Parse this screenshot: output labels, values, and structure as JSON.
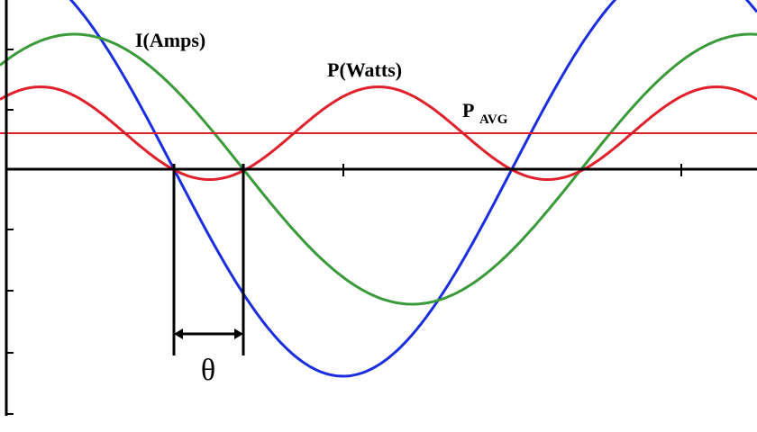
{
  "labels": {
    "current": "I(Amps)",
    "power": "P(Watts)",
    "p_avg": "P",
    "p_avg_sub": "AVG",
    "theta": "θ"
  }
}
